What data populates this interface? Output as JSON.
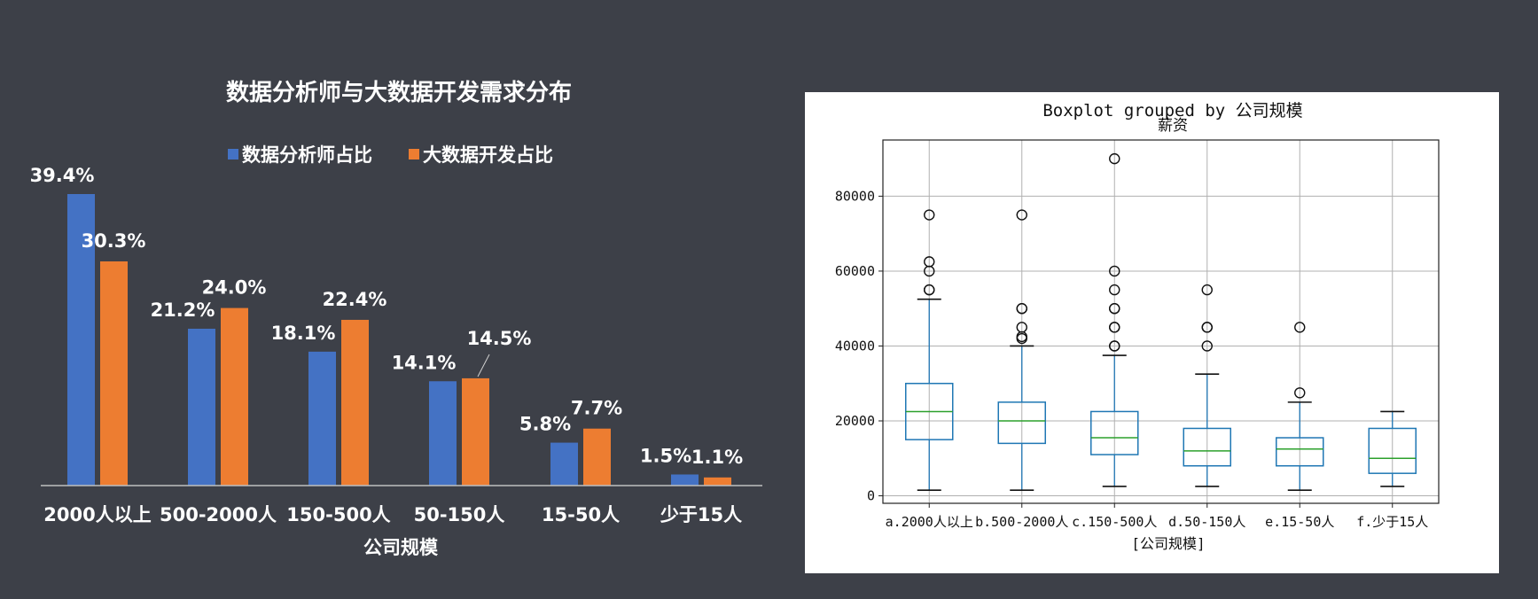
{
  "colors": {
    "background": "#3d4048",
    "analyst": "#4472c4",
    "bigdata": "#ed7d31",
    "box": "#1f77b4",
    "median": "#2ca02c"
  },
  "chart_data": [
    {
      "type": "bar",
      "title": "数据分析师与大数据开发需求分布",
      "xlabel": "公司规模",
      "ylabel": "",
      "categories": [
        "2000人以上",
        "500-2000人",
        "150-500人",
        "50-150人",
        "15-50人",
        "少于15人"
      ],
      "series": [
        {
          "name": "数据分析师占比",
          "values": [
            39.4,
            21.2,
            18.1,
            14.1,
            5.8,
            1.5
          ],
          "labels": [
            "39.4%",
            "21.2%",
            "18.1%",
            "14.1%",
            "5.8%",
            "1.5%"
          ]
        },
        {
          "name": "大数据开发占比",
          "values": [
            30.3,
            24.0,
            22.4,
            14.5,
            7.7,
            1.1
          ],
          "labels": [
            "30.3%",
            "24.0%",
            "22.4%",
            "14.5%",
            "7.7%",
            "1.1%"
          ]
        }
      ],
      "legend": "top",
      "grid": false
    },
    {
      "type": "box",
      "title": "Boxplot grouped by 公司规模",
      "subtitle": "薪资",
      "xlabel": "[公司规模]",
      "ylabel": "",
      "categories": [
        "a.2000人以上",
        "b.500-2000人",
        "c.150-500人",
        "d.50-150人",
        "e.15-50人",
        "f.少于15人"
      ],
      "yticks": [
        "0",
        "20000",
        "40000",
        "60000",
        "80000"
      ],
      "ylim": [
        -2000,
        95000
      ],
      "grid": true,
      "boxes": [
        {
          "whislo": 1500,
          "q1": 15000,
          "med": 22500,
          "q3": 30000,
          "whishi": 52500,
          "fliers": [
            55000,
            55000,
            60000,
            62500,
            75000
          ]
        },
        {
          "whislo": 1500,
          "q1": 14000,
          "med": 20000,
          "q3": 25000,
          "whishi": 40000,
          "fliers": [
            42000,
            42500,
            45000,
            50000,
            50000,
            75000
          ]
        },
        {
          "whislo": 2500,
          "q1": 11000,
          "med": 15500,
          "q3": 22500,
          "whishi": 37500,
          "fliers": [
            40000,
            40000,
            45000,
            45000,
            50000,
            50000,
            55000,
            60000,
            90000
          ]
        },
        {
          "whislo": 2500,
          "q1": 8000,
          "med": 12000,
          "q3": 18000,
          "whishi": 32500,
          "fliers": [
            40000,
            45000,
            45000,
            55000
          ]
        },
        {
          "whislo": 1500,
          "q1": 8000,
          "med": 12500,
          "q3": 15500,
          "whishi": 25000,
          "fliers": [
            27500,
            45000
          ]
        },
        {
          "whislo": 2500,
          "q1": 6000,
          "med": 10000,
          "q3": 18000,
          "whishi": 22500,
          "fliers": []
        }
      ]
    }
  ]
}
